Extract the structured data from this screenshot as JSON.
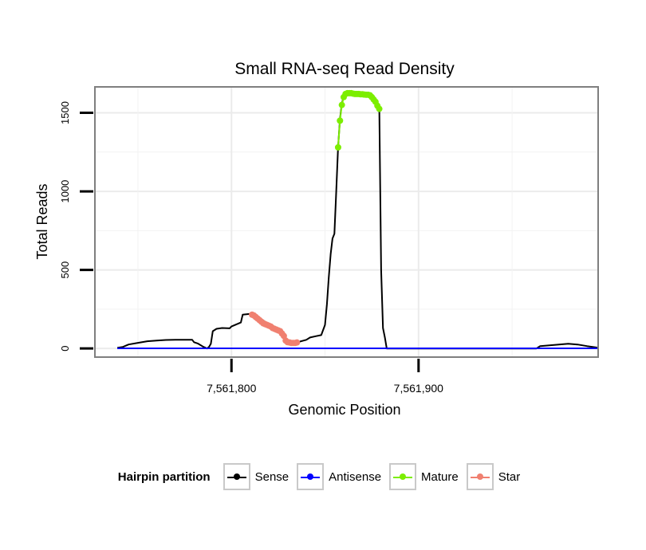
{
  "chart_data": {
    "type": "line",
    "title": "Small RNA-seq Read Density",
    "xlabel": "Genomic Position",
    "ylabel": "Total Reads",
    "xlim": [
      7561727,
      7561996
    ],
    "ylim": [
      -55,
      1665
    ],
    "x_ticks": [
      7561800,
      7561900
    ],
    "x_tick_labels": [
      "7,561,800",
      "7,561,900"
    ],
    "y_ticks": [
      0,
      500,
      1000,
      1500
    ],
    "y_tick_labels": [
      "0",
      "500",
      "1000",
      "1500"
    ],
    "grid": true,
    "legend_title": "Hairpin partition",
    "legend_position": "bottom",
    "series": [
      {
        "name": "Sense",
        "color": "#000000",
        "markers": false,
        "points": [
          [
            7561739,
            4
          ],
          [
            7561742,
            10
          ],
          [
            7561745,
            25
          ],
          [
            7561750,
            36
          ],
          [
            7561755,
            46
          ],
          [
            7561760,
            50
          ],
          [
            7561765,
            54
          ],
          [
            7561770,
            55
          ],
          [
            7561775,
            55
          ],
          [
            7561779,
            55
          ],
          [
            7561780,
            40
          ],
          [
            7561782,
            32
          ],
          [
            7561785,
            10
          ],
          [
            7561787,
            0
          ],
          [
            7561788,
            10
          ],
          [
            7561789,
            30
          ],
          [
            7561790,
            110
          ],
          [
            7561792,
            125
          ],
          [
            7561795,
            130
          ],
          [
            7561799,
            128
          ],
          [
            7561800,
            140
          ],
          [
            7561803,
            155
          ],
          [
            7561805,
            165
          ],
          [
            7561806,
            215
          ],
          [
            7561808,
            218
          ],
          [
            7561810,
            220
          ],
          [
            7561813,
            210
          ],
          [
            7561815,
            195
          ],
          [
            7561818,
            170
          ],
          [
            7561820,
            150
          ],
          [
            7561823,
            130
          ],
          [
            7561825,
            110
          ],
          [
            7561827,
            95
          ],
          [
            7561828,
            80
          ],
          [
            7561830,
            40
          ],
          [
            7561832,
            30
          ],
          [
            7561836,
            42
          ],
          [
            7561840,
            55
          ],
          [
            7561842,
            70
          ],
          [
            7561845,
            78
          ],
          [
            7561848,
            85
          ],
          [
            7561850,
            150
          ],
          [
            7561851,
            280
          ],
          [
            7561852,
            450
          ],
          [
            7561853,
            600
          ],
          [
            7561854,
            700
          ],
          [
            7561855,
            730
          ],
          [
            7561856,
            1000
          ],
          [
            7561857,
            1280
          ],
          [
            7561858,
            1460
          ],
          [
            7561859,
            1560
          ],
          [
            7561860,
            1600
          ],
          [
            7561861,
            1620
          ],
          [
            7561865,
            1620
          ],
          [
            7561870,
            1615
          ],
          [
            7561874,
            1615
          ],
          [
            7561876,
            1600
          ],
          [
            7561878,
            1570
          ],
          [
            7561879,
            1530
          ],
          [
            7561880,
            500
          ],
          [
            7561881,
            130
          ],
          [
            7561882,
            70
          ],
          [
            7561883,
            0
          ],
          [
            7561900,
            0
          ],
          [
            7561950,
            0
          ],
          [
            7561963,
            0
          ],
          [
            7561965,
            15
          ],
          [
            7561970,
            20
          ],
          [
            7561975,
            25
          ],
          [
            7561980,
            30
          ],
          [
            7561985,
            25
          ],
          [
            7561990,
            15
          ],
          [
            7561996,
            5
          ]
        ]
      },
      {
        "name": "Antisense",
        "color": "#0000ff",
        "markers": false,
        "points": [
          [
            7561739,
            1
          ],
          [
            7561800,
            1
          ],
          [
            7561900,
            1
          ],
          [
            7561996,
            1
          ]
        ]
      },
      {
        "name": "Mature",
        "color": "#7cee00",
        "markers": true,
        "points": [
          [
            7561857,
            1280
          ],
          [
            7561858,
            1450
          ],
          [
            7561859,
            1550
          ],
          [
            7561860,
            1600
          ],
          [
            7561861,
            1620
          ],
          [
            7561862,
            1625
          ],
          [
            7561863,
            1625
          ],
          [
            7561864,
            1625
          ],
          [
            7561865,
            1622
          ],
          [
            7561866,
            1620
          ],
          [
            7561867,
            1620
          ],
          [
            7561868,
            1620
          ],
          [
            7561869,
            1618
          ],
          [
            7561870,
            1618
          ],
          [
            7561871,
            1616
          ],
          [
            7561872,
            1615
          ],
          [
            7561873,
            1615
          ],
          [
            7561874,
            1612
          ],
          [
            7561875,
            1600
          ],
          [
            7561876,
            1585
          ],
          [
            7561877,
            1570
          ],
          [
            7561878,
            1545
          ],
          [
            7561879,
            1525
          ]
        ]
      },
      {
        "name": "Star",
        "color": "#f08070",
        "markers": true,
        "points": [
          [
            7561811,
            215
          ],
          [
            7561812,
            210
          ],
          [
            7561813,
            200
          ],
          [
            7561814,
            190
          ],
          [
            7561815,
            180
          ],
          [
            7561816,
            170
          ],
          [
            7561817,
            160
          ],
          [
            7561818,
            155
          ],
          [
            7561819,
            150
          ],
          [
            7561820,
            145
          ],
          [
            7561821,
            140
          ],
          [
            7561822,
            130
          ],
          [
            7561823,
            125
          ],
          [
            7561824,
            120
          ],
          [
            7561825,
            115
          ],
          [
            7561826,
            110
          ],
          [
            7561827,
            95
          ],
          [
            7561828,
            80
          ],
          [
            7561829,
            50
          ],
          [
            7561830,
            40
          ],
          [
            7561831,
            38
          ],
          [
            7561832,
            35
          ],
          [
            7561833,
            35
          ],
          [
            7561834,
            35
          ],
          [
            7561835,
            38
          ]
        ]
      }
    ]
  }
}
